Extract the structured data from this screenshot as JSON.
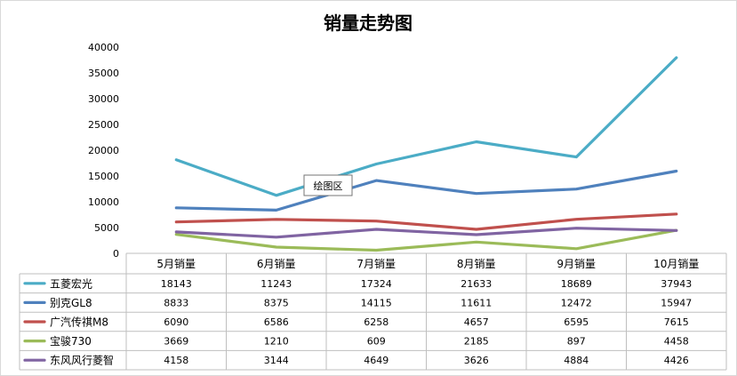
{
  "chart_data": {
    "type": "line",
    "title": "销量走势图",
    "categories": [
      "5月销量",
      "6月销量",
      "7月销量",
      "8月销量",
      "9月销量",
      "10月销量"
    ],
    "ylim": [
      0,
      40000
    ],
    "yticks": [
      "0",
      "5000",
      "10000",
      "15000",
      "20000",
      "25000",
      "30000",
      "35000",
      "40000"
    ],
    "grid": false,
    "legend": "data-table",
    "series": [
      {
        "name": "五菱宏光",
        "color": "#4bacc6",
        "values": [
          18143,
          11243,
          17324,
          21633,
          18689,
          37943
        ]
      },
      {
        "name": "别克GL8",
        "color": "#4f81bd",
        "values": [
          8833,
          8375,
          14115,
          11611,
          12472,
          15947
        ]
      },
      {
        "name": "广汽传祺M8",
        "color": "#c0504d",
        "values": [
          6090,
          6586,
          6258,
          4657,
          6595,
          7615
        ]
      },
      {
        "name": "宝骏730",
        "color": "#9bbb59",
        "values": [
          3669,
          1210,
          609,
          2185,
          897,
          4458
        ]
      },
      {
        "name": "东风风行菱智",
        "color": "#8064a2",
        "values": [
          4158,
          3144,
          4649,
          3626,
          4884,
          4426
        ]
      }
    ],
    "tooltip": "绘图区"
  }
}
